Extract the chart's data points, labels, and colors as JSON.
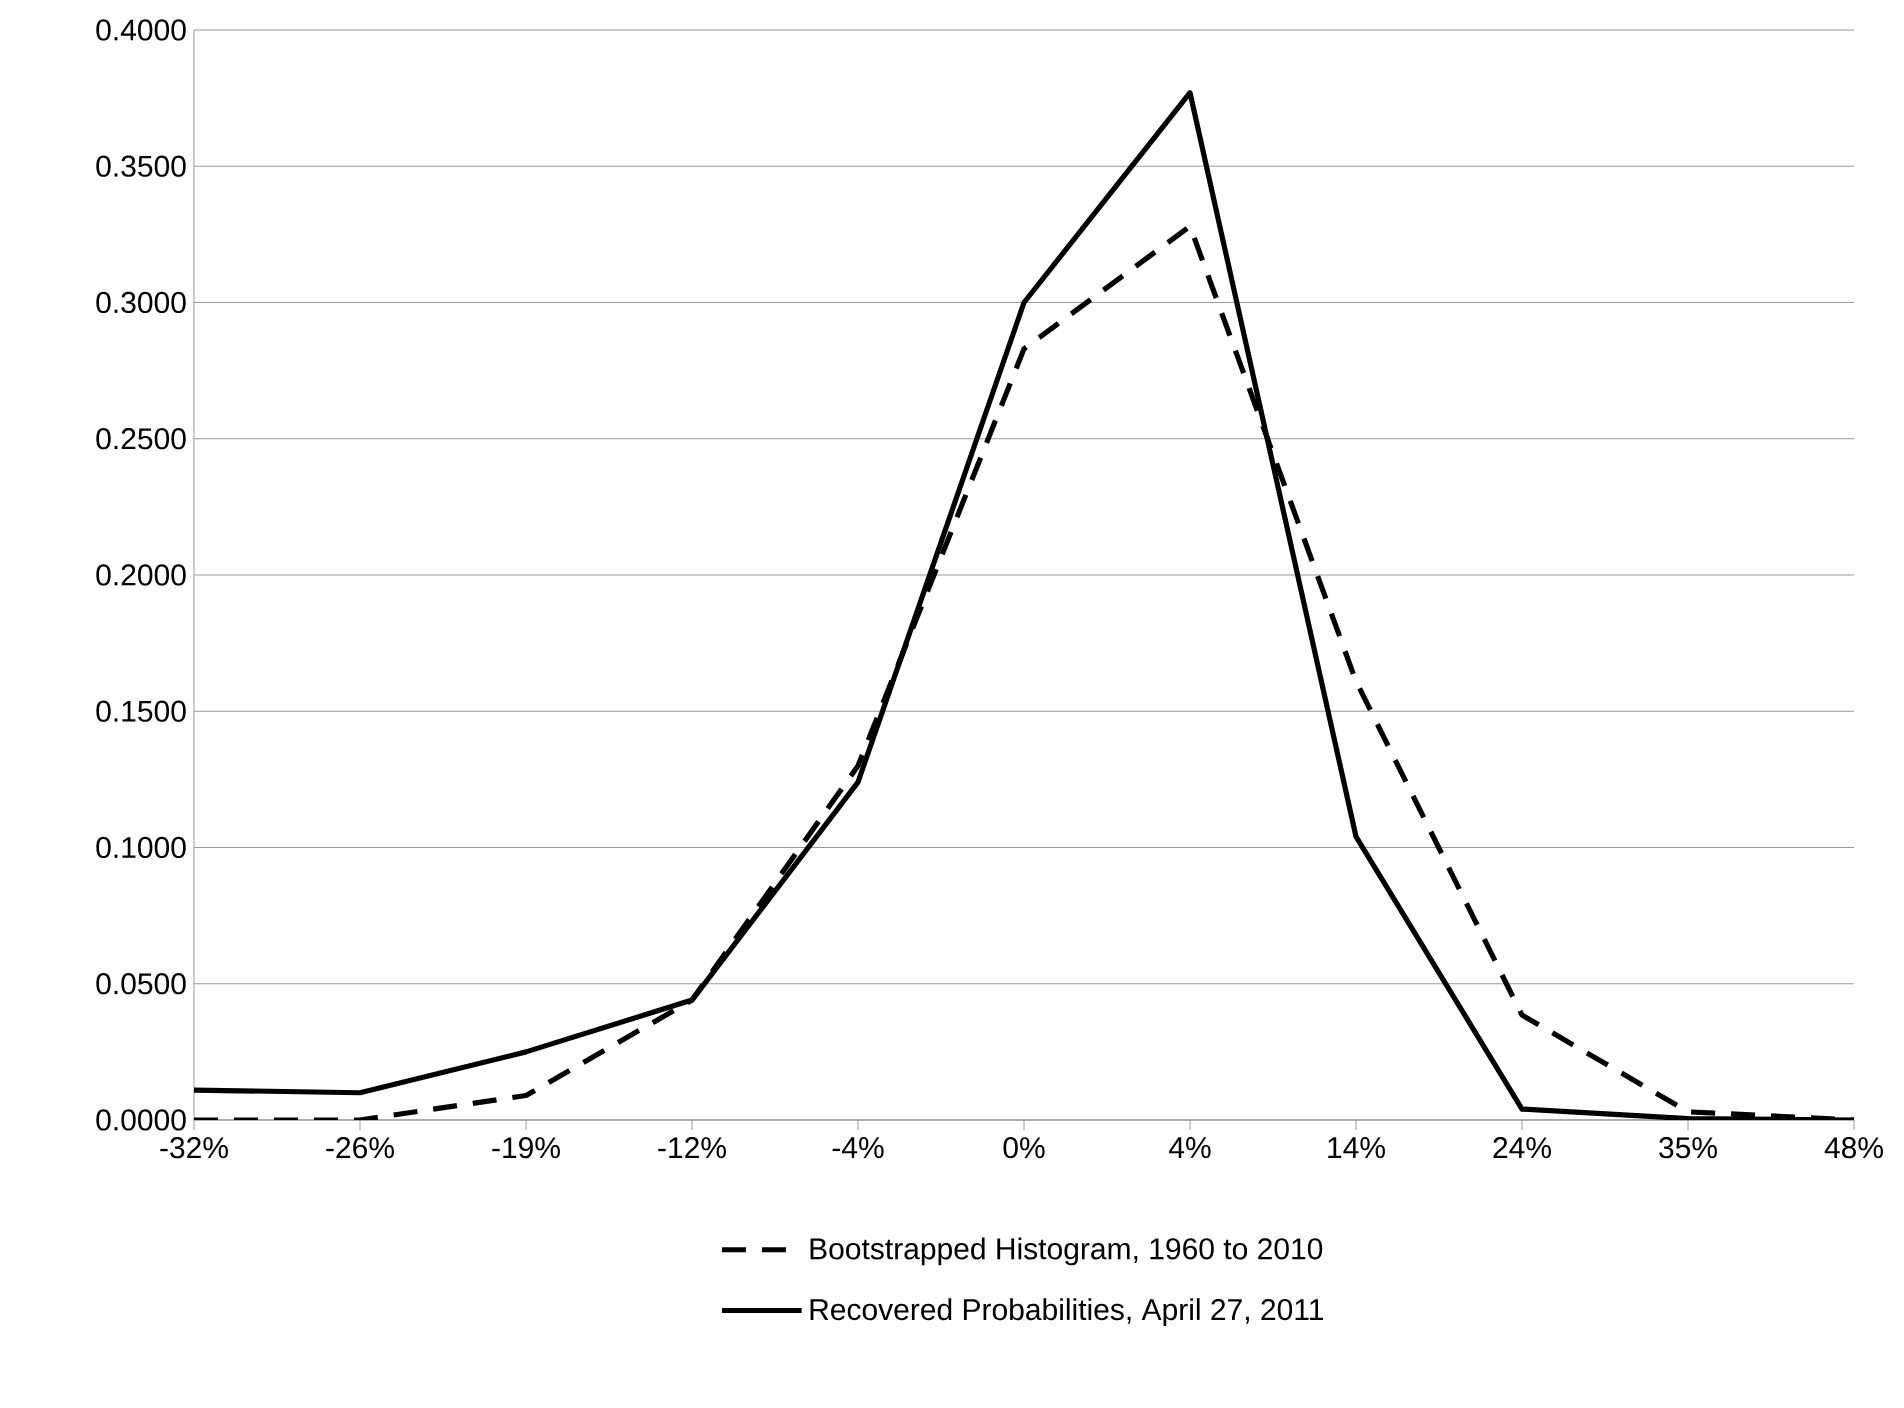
{
  "chart_data": {
    "type": "line",
    "categories": [
      "-32%",
      "-26%",
      "-19%",
      "-12%",
      "-4%",
      "0%",
      "4%",
      "14%",
      "24%",
      "35%",
      "48%"
    ],
    "series": [
      {
        "name": "Bootstrapped Histogram, 1960 to 2010",
        "color": "#000000",
        "line_style": "dashed",
        "values": [
          0.0,
          0.0,
          0.009,
          0.044,
          0.13,
          0.283,
          0.328,
          0.161,
          0.0385,
          0.003,
          0.0
        ]
      },
      {
        "name": "Recovered Probabilities, April 27, 2011",
        "color": "#000000",
        "line_style": "solid",
        "values": [
          0.011,
          0.01,
          0.025,
          0.044,
          0.124,
          0.3,
          0.377,
          0.104,
          0.004,
          0.0005,
          0.0
        ]
      }
    ],
    "ylim": [
      0,
      0.4
    ],
    "yticks": [
      {
        "value": 0,
        "label": "0.0000"
      },
      {
        "value": 0.05,
        "label": "0.0500"
      },
      {
        "value": 0.1,
        "label": "0.1000"
      },
      {
        "value": 0.15,
        "label": "0.1500"
      },
      {
        "value": 0.2,
        "label": "0.2000"
      },
      {
        "value": 0.25,
        "label": "0.2500"
      },
      {
        "value": 0.3,
        "label": "0.3000"
      },
      {
        "value": 0.35,
        "label": "0.3500"
      },
      {
        "value": 0.4,
        "label": "0.4000"
      }
    ],
    "grid": "y",
    "legend": "bottom",
    "marker": "none"
  }
}
